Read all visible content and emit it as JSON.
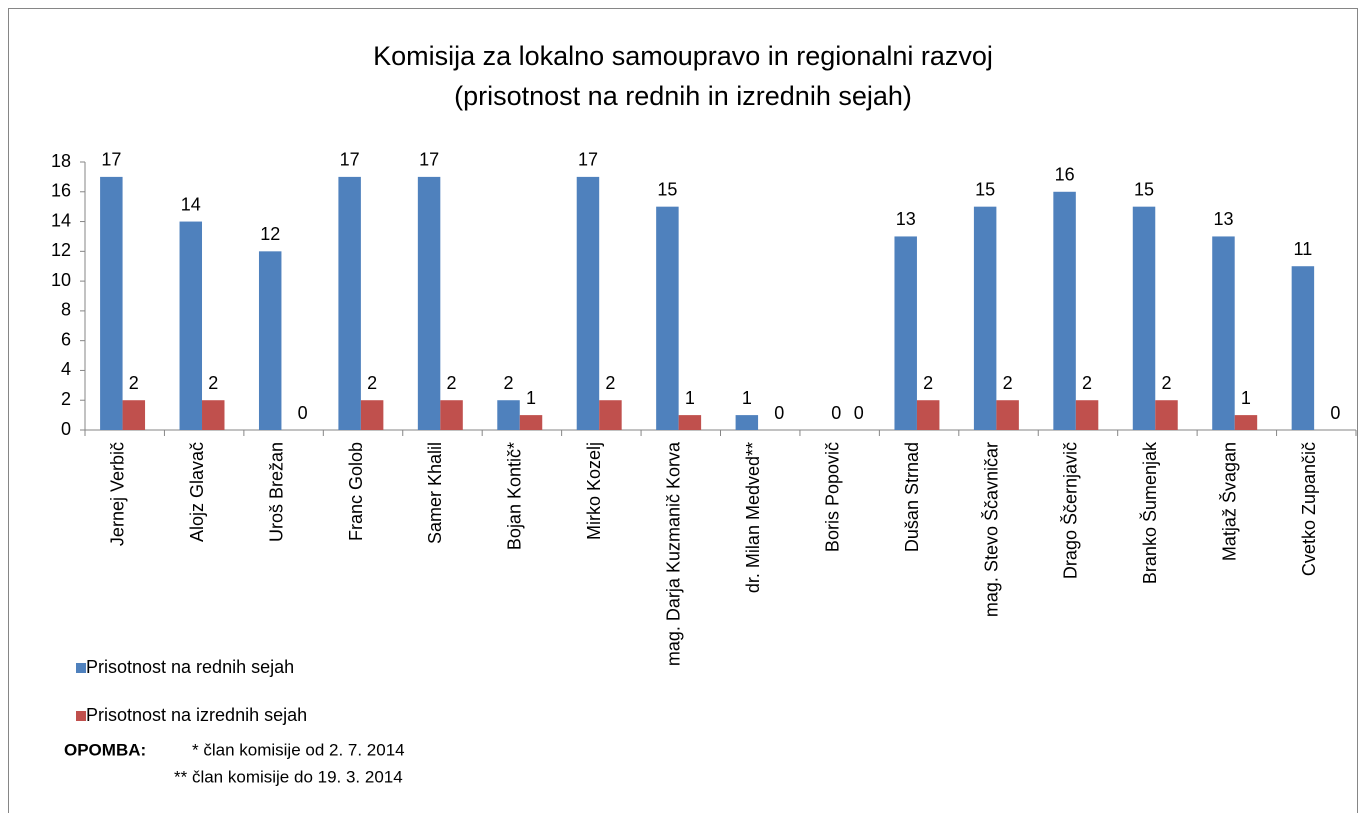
{
  "chart_data": {
    "type": "bar",
    "title": [
      "Komisija za lokalno samoupravo in regionalni razvoj",
      "(prisotnost na rednih in izrednih sejah)"
    ],
    "categories": [
      "Jernej Verbič",
      "Alojz Glavač",
      "Uroš Brežan",
      "Franc Golob",
      "Samer Khalil",
      "Bojan Kontič*",
      "Mirko Kozelj",
      "mag. Darja Kuzmanič Korva",
      "dr. Milan Medved**",
      "Boris Popovič",
      "Dušan Strnad",
      "mag. Stevo Ščavničar",
      "Drago Ščernjavič",
      "Branko Šumenjak",
      "Matjaž Švagan",
      "Cvetko Zupančič"
    ],
    "series": [
      {
        "name": "Prisotnost na rednih sejah",
        "color": "#4f81bd",
        "values": [
          17,
          14,
          12,
          17,
          17,
          2,
          17,
          15,
          1,
          0,
          13,
          15,
          16,
          15,
          13,
          11
        ]
      },
      {
        "name": "Prisotnost na izrednih sejah",
        "color": "#c0504d",
        "values": [
          2,
          2,
          0,
          2,
          2,
          1,
          2,
          1,
          0,
          0,
          2,
          2,
          2,
          2,
          1,
          0
        ]
      }
    ],
    "ylim": [
      0,
      18
    ],
    "yticks": [
      0,
      2,
      4,
      6,
      8,
      10,
      12,
      14,
      16,
      18
    ],
    "grid": false,
    "legend": "bottom-left",
    "note_label": "OPOMBA:",
    "notes": [
      "* član komisije od 2. 7. 2014",
      "** član komisije do 19. 3. 2014"
    ]
  }
}
